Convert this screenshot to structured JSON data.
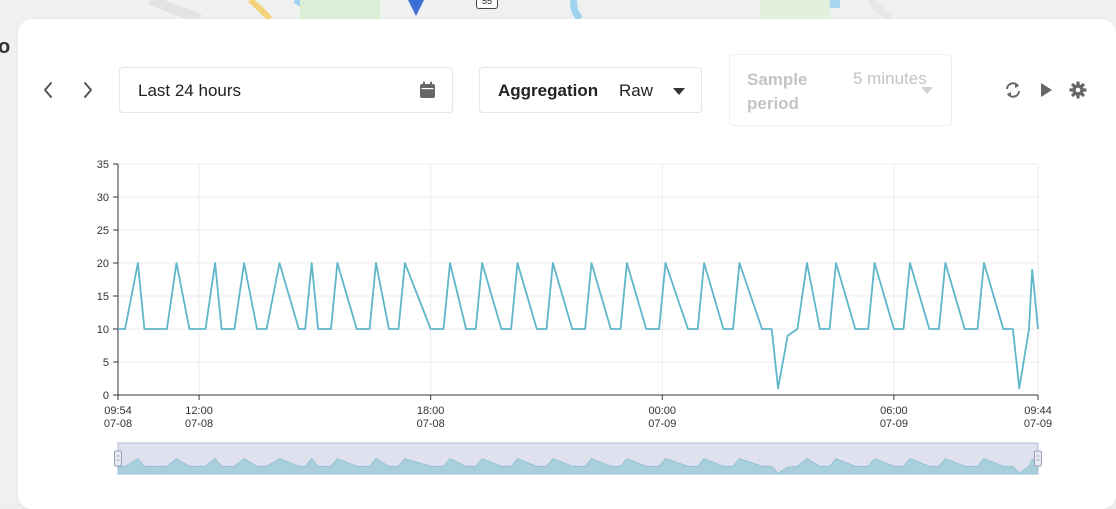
{
  "map": {
    "label": "o",
    "road_badge": "55"
  },
  "toolbar": {
    "time_range": "Last 24 hours",
    "aggregation_label": "Aggregation",
    "aggregation_value": "Raw",
    "sample_period_label": "Sample period",
    "sample_period_value": "5 minutes"
  },
  "icons": {
    "prev": "chevron-left-icon",
    "next": "chevron-right-icon",
    "calendar": "calendar-icon",
    "dropdown": "caret-down-icon",
    "refresh": "refresh-icon",
    "play": "play-icon",
    "settings": "gear-icon"
  },
  "chart_data": {
    "type": "line",
    "y_ticks": [
      "0",
      "5",
      "10",
      "15",
      "20",
      "25",
      "30",
      "35"
    ],
    "ylim": [
      0,
      35
    ],
    "x_ticks": [
      {
        "time": "09:54",
        "date": "07-08"
      },
      {
        "time": "12:00",
        "date": "07-08"
      },
      {
        "time": "18:00",
        "date": "07-08"
      },
      {
        "time": "00:00",
        "date": "07-09"
      },
      {
        "time": "06:00",
        "date": "07-09"
      },
      {
        "time": "09:44",
        "date": "07-09"
      }
    ],
    "xlim": [
      "07-08 09:54",
      "07-09 09:44"
    ],
    "grid": true,
    "line_color": "#5fb6cb",
    "series": [
      {
        "x": [
          "07-08 09:54",
          "07-08 10:05",
          "07-08 10:25",
          "07-08 10:35",
          "07-08 11:10",
          "07-08 11:25",
          "07-08 11:45",
          "07-08 12:00",
          "07-08 12:10",
          "07-08 12:25",
          "07-08 12:35",
          "07-08 12:55",
          "07-08 13:10",
          "07-08 13:30",
          "07-08 13:45",
          "07-08 14:05",
          "07-08 14:35",
          "07-08 14:45",
          "07-08 14:55",
          "07-08 15:05",
          "07-08 15:05",
          "07-08 15:25",
          "07-08 15:35",
          "07-08 16:05",
          "07-08 16:25",
          "07-08 16:35",
          "07-08 16:55",
          "07-08 17:10",
          "07-08 17:20",
          "07-08 18:00",
          "07-08 18:20",
          "07-08 18:30",
          "07-08 18:55",
          "07-08 19:10",
          "07-08 19:20",
          "07-08 19:50",
          "07-08 20:05",
          "07-08 20:15",
          "07-08 20:45",
          "07-08 21:00",
          "07-08 21:10",
          "07-08 21:40",
          "07-08 22:00",
          "07-08 22:10",
          "07-08 22:40",
          "07-08 22:55",
          "07-08 23:05",
          "07-08 23:35",
          "07-08 23:55",
          "07-09 00:05",
          "07-09 00:40",
          "07-09 00:55",
          "07-09 01:05",
          "07-09 01:35",
          "07-09 01:50",
          "07-09 02:00",
          "07-09 02:35",
          "07-09 02:40",
          "07-09 02:50",
          "07-09 03:00",
          "07-09 03:15",
          "07-09 03:30",
          "07-09 03:45",
          "07-09 04:05",
          "07-09 04:20",
          "07-09 04:30",
          "07-09 05:00",
          "07-09 05:20",
          "07-09 05:30",
          "07-09 06:00",
          "07-09 06:15",
          "07-09 06:25",
          "07-09 06:55",
          "07-09 07:10",
          "07-09 07:20",
          "07-09 07:50",
          "07-09 08:10",
          "07-09 08:20",
          "07-09 08:50",
          "07-09 09:05",
          "07-09 09:15",
          "07-09 09:30",
          "07-09 09:35",
          "07-09 09:44"
        ],
        "y": [
          10,
          10,
          20,
          10,
          10,
          20,
          10,
          10,
          10,
          20,
          10,
          10,
          20,
          10,
          10,
          20,
          10,
          10,
          20,
          10,
          10,
          10,
          20,
          10,
          10,
          20,
          10,
          10,
          20,
          10,
          10,
          20,
          10,
          10,
          20,
          10,
          10,
          20,
          10,
          10,
          20,
          10,
          10,
          20,
          10,
          10,
          20,
          10,
          10,
          20,
          10,
          10,
          20,
          10,
          10,
          20,
          10,
          10,
          10,
          1,
          9,
          10,
          20,
          10,
          10,
          20,
          10,
          10,
          20,
          10,
          10,
          20,
          10,
          10,
          20,
          10,
          10,
          20,
          10,
          10,
          1,
          10,
          19,
          10
        ]
      }
    ]
  }
}
